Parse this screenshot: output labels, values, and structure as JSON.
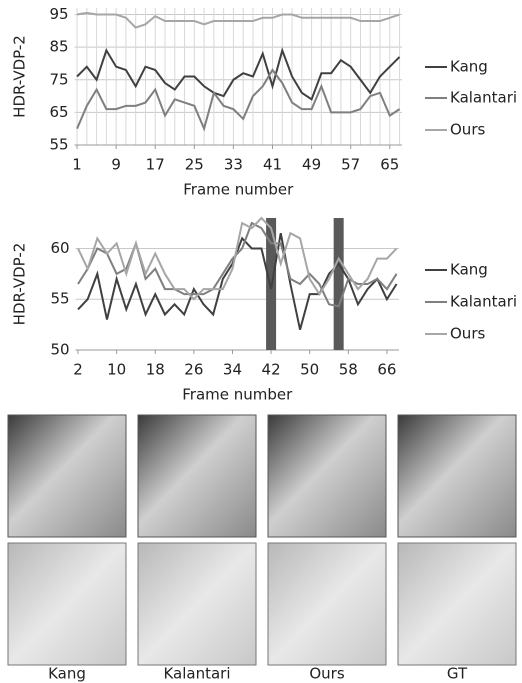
{
  "chart_data": [
    {
      "type": "line",
      "y_label": "HDR-VDP-2",
      "x_label": "Frame number",
      "x": [
        1,
        3,
        5,
        7,
        9,
        11,
        13,
        15,
        17,
        19,
        21,
        23,
        25,
        27,
        29,
        31,
        33,
        35,
        37,
        39,
        41,
        43,
        45,
        47,
        49,
        51,
        53,
        55,
        57,
        59,
        61,
        63,
        65,
        67
      ],
      "xlim": [
        0.5,
        67.5
      ],
      "xticks": [
        1,
        9,
        17,
        25,
        33,
        41,
        49,
        57,
        65
      ],
      "ylim": [
        55,
        97
      ],
      "yticks": [
        55,
        65,
        75,
        85,
        95
      ],
      "grid": true,
      "x_grid": true,
      "legend": "right",
      "series": [
        {
          "name": "Kang",
          "color": "#404040",
          "values": [
            76,
            79,
            75,
            84,
            79,
            78,
            73,
            79,
            78,
            74,
            72,
            76,
            76,
            73,
            71,
            70,
            75,
            77,
            76,
            83,
            73,
            84,
            76,
            71,
            69,
            77,
            77,
            81,
            79,
            75,
            71,
            76,
            79,
            82
          ]
        },
        {
          "name": "Kalantari",
          "color": "#7f7f7f",
          "values": [
            60,
            67,
            72,
            66,
            66,
            67,
            67,
            68,
            72,
            64,
            69,
            68,
            67,
            60,
            71,
            67,
            66,
            63,
            70,
            73,
            78,
            74,
            68,
            66,
            66,
            73,
            65,
            65,
            65,
            66,
            70,
            71,
            64,
            66
          ]
        },
        {
          "name": "Ours",
          "color": "#a6a6a6",
          "values": [
            95,
            95.5,
            95,
            95,
            95,
            94,
            91,
            92,
            94.5,
            93,
            93,
            93,
            93,
            92,
            93,
            93,
            93,
            93,
            93,
            94,
            94,
            95,
            95,
            94,
            94,
            94,
            94,
            94,
            94,
            93,
            93,
            93,
            94,
            95
          ]
        }
      ]
    },
    {
      "type": "line",
      "y_label": "HDR-VDP-2",
      "x_label": "Frame number",
      "x": [
        2,
        4,
        6,
        8,
        10,
        12,
        14,
        16,
        18,
        20,
        22,
        24,
        26,
        28,
        30,
        32,
        34,
        36,
        38,
        40,
        42,
        44,
        46,
        48,
        50,
        52,
        54,
        56,
        58,
        60,
        62,
        64,
        66,
        68
      ],
      "xlim": [
        1.5,
        68.5
      ],
      "xticks": [
        2,
        10,
        18,
        26,
        34,
        42,
        50,
        58,
        66
      ],
      "ylim": [
        50,
        63
      ],
      "yticks": [
        50,
        55,
        60
      ],
      "grid": true,
      "x_grid": false,
      "legend": "right",
      "highlights": [
        42,
        56
      ],
      "highlight_color": "#595959",
      "series": [
        {
          "name": "Kang",
          "color": "#404040",
          "values": [
            54,
            55,
            57.5,
            53,
            57,
            54,
            56.5,
            53.5,
            55.5,
            53.5,
            54.5,
            53.5,
            56,
            54.5,
            53.5,
            57,
            58.5,
            61,
            60,
            60,
            56,
            61.5,
            56.5,
            52,
            55.5,
            55.5,
            57.5,
            58.5,
            57,
            54.5,
            56,
            57,
            55,
            56.5
          ]
        },
        {
          "name": "Kalantari",
          "color": "#7f7f7f",
          "values": [
            56.5,
            58,
            60,
            59.5,
            57.5,
            58,
            60.5,
            57,
            58,
            56,
            56,
            55.5,
            55.5,
            55.5,
            56,
            57.5,
            59,
            60,
            62.5,
            62,
            60.5,
            60.5,
            57,
            56.5,
            57.5,
            56.5,
            54.5,
            54.3,
            57,
            56.5,
            56.5,
            57,
            56,
            57.5
          ]
        },
        {
          "name": "Ours",
          "color": "#a6a6a6",
          "values": [
            60,
            58,
            61,
            59.5,
            60.5,
            57.5,
            60.5,
            57.5,
            59.5,
            57.5,
            56,
            56,
            55,
            56,
            56,
            56,
            58,
            62.5,
            62,
            63,
            62,
            58.5,
            61.5,
            61,
            57,
            55.5,
            57,
            59,
            57.5,
            56,
            57,
            59,
            59,
            60
          ]
        }
      ]
    }
  ],
  "figure": {
    "image_labels": [
      "Kang",
      "Kalantari",
      "Ours",
      "GT"
    ]
  }
}
